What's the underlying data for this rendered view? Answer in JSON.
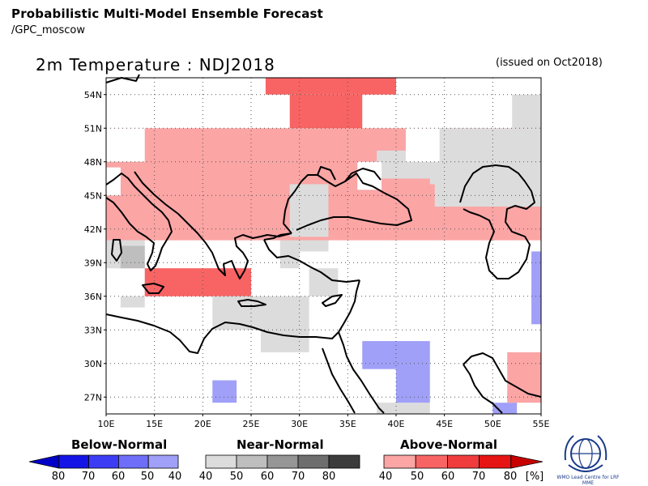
{
  "header": {
    "title": "Probabilistic Multi-Model Ensemble Forecast",
    "subtitle": "/GPC_moscow",
    "map_title": "2m Temperature : NDJ2018",
    "issued": "(issued on Oct2018)"
  },
  "axes": {
    "lat_labels": [
      "54N",
      "51N",
      "48N",
      "45N",
      "42N",
      "39N",
      "36N",
      "33N",
      "30N",
      "27N"
    ],
    "lon_labels": [
      "10E",
      "15E",
      "20E",
      "25E",
      "30E",
      "35E",
      "40E",
      "45E",
      "50E",
      "55E"
    ]
  },
  "legend": {
    "below": {
      "title": "Below-Normal",
      "labels": [
        "80",
        "70",
        "60",
        "50",
        "40"
      ],
      "colors": [
        "#0000c8",
        "#1414e6",
        "#3c3cf5",
        "#6e6ef8",
        "#a0a0f8"
      ]
    },
    "near": {
      "title": "Near-Normal",
      "labels": [
        "40",
        "50",
        "60",
        "70",
        "80"
      ],
      "colors": [
        "#dcdcdc",
        "#bebebe",
        "#969696",
        "#6e6e6e",
        "#3c3c3c"
      ]
    },
    "above": {
      "title": "Above-Normal",
      "labels": [
        "40",
        "50",
        "60",
        "70",
        "80"
      ],
      "unit": "[%]",
      "colors": [
        "#fba5a5",
        "#f86464",
        "#f03c3c",
        "#e61414",
        "#c80000"
      ]
    }
  },
  "logo": {
    "text": "WMO Lead Centre for LRF MME",
    "icon": "wmo-logo-icon"
  },
  "colors": {
    "above_40": "#fba5a5",
    "above_50": "#f86464",
    "near_40": "#dcdcdc",
    "near_50": "#bebebe",
    "below_40": "#a0a0f8"
  }
}
